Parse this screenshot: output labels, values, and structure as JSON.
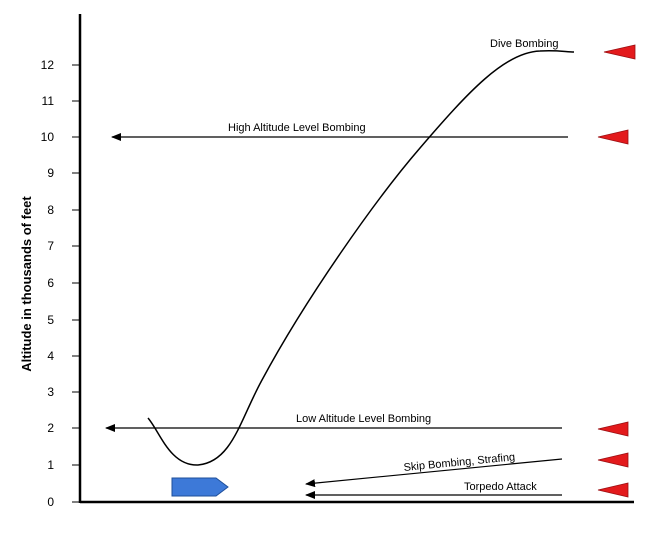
{
  "diagram": {
    "y_axis_title": "Altitude in thousands of feet",
    "y_ticks": [
      "0",
      "1",
      "2",
      "3",
      "4",
      "5",
      "6",
      "7",
      "8",
      "9",
      "10",
      "11",
      "12"
    ],
    "attacks": [
      {
        "id": "dive",
        "label": "Dive Bombing"
      },
      {
        "id": "high-level",
        "label": "High Altitude Level Bombing"
      },
      {
        "id": "low-level",
        "label": "Low Altitude Level Bombing"
      },
      {
        "id": "skip",
        "label": "Skip Bombing, Strafing"
      },
      {
        "id": "torpedo",
        "label": "Torpedo Attack"
      }
    ],
    "colors": {
      "aircraft_marker": "#e31a1c",
      "ship": "#3d79d8",
      "ink": "#000000"
    },
    "icons": [
      "aircraft-marker-icon",
      "ship-icon"
    ]
  }
}
